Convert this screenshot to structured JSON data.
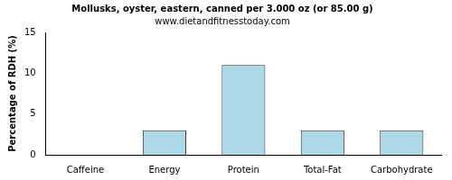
{
  "chart_data": {
    "type": "bar",
    "title": "Mollusks, oyster, eastern, canned per 3.000 oz (or 85.00 g)",
    "subtitle": "www.dietandfitnesstoday.com",
    "y_label": "Percentage of RDH (%)",
    "categories": [
      "Caffeine",
      "Energy",
      "Protein",
      "Total-Fat",
      "Carbohydrate"
    ],
    "values": [
      0,
      3,
      11,
      3,
      3
    ],
    "color": "#add8e6",
    "ylim": [
      0,
      15
    ],
    "yticks": [
      0,
      5,
      10,
      15
    ],
    "grid": false
  }
}
